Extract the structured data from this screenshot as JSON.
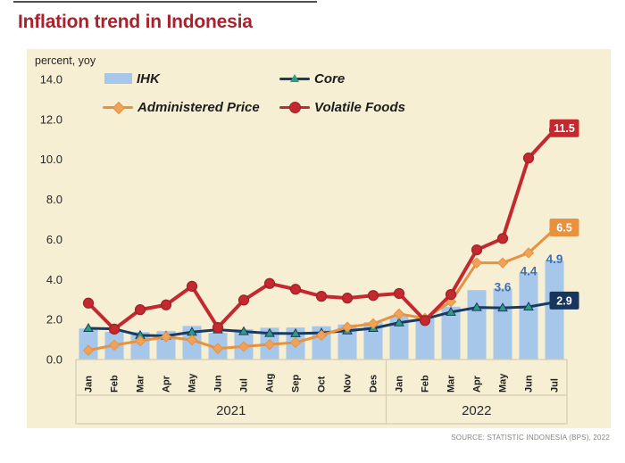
{
  "title": "Inflation trend in Indonesia",
  "source": "SOURCE: STATISTIC INDONESIA (BPS), 2022",
  "colors": {
    "title": "#a8222d",
    "panel": "#f6efd4",
    "bar": "#a6c7e9",
    "core": "#1b3a63",
    "core_marker": "#2e9c85",
    "administered": "#e8913f",
    "administered_marker": "#f0a356",
    "volatile": "#c3292e",
    "volatile_marker_edge": "#9e2126",
    "bar_label": "#3f6eae",
    "axis_line": "#d3ccb0",
    "text": "#262626",
    "source": "#85857d"
  },
  "chart_data": {
    "type": "bar+line combo",
    "ylabel": "percent, yoy",
    "ylim": [
      0,
      14
    ],
    "ytick_step": 2,
    "grid": false,
    "legend_position": "top inside plot, two columns",
    "categories": [
      "Jan",
      "Feb",
      "Mar",
      "Apr",
      "May",
      "Jun",
      "Jul",
      "Aug",
      "Sep",
      "Oct",
      "Nov",
      "Des",
      "Jan",
      "Feb",
      "Mar",
      "Apr",
      "May",
      "Jun",
      "Jul"
    ],
    "year_groups": [
      {
        "label": "2021",
        "months": 12
      },
      {
        "label": "2022",
        "months": 7
      }
    ],
    "series": [
      {
        "name": "IHK",
        "type": "bar",
        "color": "#a6c7e9",
        "values": [
          1.55,
          1.38,
          1.37,
          1.42,
          1.68,
          1.33,
          1.52,
          1.59,
          1.6,
          1.66,
          1.75,
          1.87,
          2.18,
          2.06,
          2.64,
          3.47,
          3.55,
          4.35,
          4.94
        ],
        "value_labels": [
          {
            "index": 16,
            "text": "3.6"
          },
          {
            "index": 17,
            "text": "4.4"
          },
          {
            "index": 18,
            "text": "4.9"
          }
        ]
      },
      {
        "name": "Core",
        "type": "line",
        "marker": "triangle",
        "color": "#1b3a63",
        "marker_color": "#2e9c85",
        "width": 3,
        "values": [
          1.56,
          1.53,
          1.21,
          1.18,
          1.37,
          1.49,
          1.4,
          1.31,
          1.3,
          1.33,
          1.44,
          1.56,
          1.84,
          2.03,
          2.37,
          2.6,
          2.58,
          2.63,
          2.86
        ],
        "end_label": {
          "text": "2.9",
          "box_color": "#17365d"
        }
      },
      {
        "name": "Administered Price",
        "type": "line",
        "marker": "diamond",
        "color": "#e8913f",
        "marker_color": "#f0a356",
        "width": 3,
        "values": [
          0.46,
          0.72,
          0.93,
          1.13,
          0.98,
          0.55,
          0.65,
          0.75,
          0.85,
          1.21,
          1.62,
          1.79,
          2.28,
          2.06,
          2.89,
          4.83,
          4.83,
          5.33,
          6.51
        ],
        "end_label": {
          "text": "6.5",
          "box_color": "#e8913f"
        }
      },
      {
        "name": "Volatile Foods",
        "type": "line",
        "marker": "circle",
        "color": "#c3292e",
        "marker_color": "#c3292e",
        "width": 4,
        "values": [
          2.82,
          1.52,
          2.49,
          2.73,
          3.66,
          1.6,
          2.97,
          3.8,
          3.51,
          3.16,
          3.07,
          3.2,
          3.3,
          1.95,
          3.25,
          5.48,
          6.05,
          10.07,
          11.47
        ],
        "end_label": {
          "text": "11.5",
          "box_color": "#c3292e"
        }
      }
    ]
  }
}
